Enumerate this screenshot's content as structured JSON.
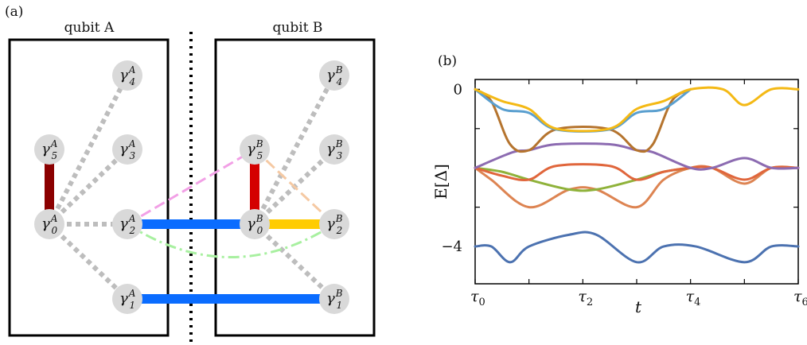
{
  "panel_a": {
    "label": "(a)",
    "box_a_title": "qubit A",
    "box_b_title": "qubit B",
    "nodes": [
      {
        "id": "A0",
        "sym": "γ",
        "sub": "0",
        "sup": "A"
      },
      {
        "id": "A1",
        "sym": "γ",
        "sub": "1",
        "sup": "A"
      },
      {
        "id": "A2",
        "sym": "γ",
        "sub": "2",
        "sup": "A"
      },
      {
        "id": "A3",
        "sym": "γ",
        "sub": "3",
        "sup": "A"
      },
      {
        "id": "A4",
        "sym": "γ",
        "sub": "4",
        "sup": "A"
      },
      {
        "id": "A5",
        "sym": "γ",
        "sub": "5",
        "sup": "A"
      },
      {
        "id": "B0",
        "sym": "γ",
        "sub": "0",
        "sup": "B"
      },
      {
        "id": "B1",
        "sym": "γ",
        "sub": "1",
        "sup": "B"
      },
      {
        "id": "B2",
        "sym": "γ",
        "sub": "2",
        "sup": "B"
      },
      {
        "id": "B3",
        "sym": "γ",
        "sub": "3",
        "sup": "B"
      },
      {
        "id": "B4",
        "sym": "γ",
        "sub": "4",
        "sup": "B"
      },
      {
        "id": "B5",
        "sym": "γ",
        "sub": "5",
        "sup": "B"
      }
    ],
    "colors": {
      "node_fill": "#d9d9d9",
      "grey_dotted": "#bdbdbd",
      "dark_red": "#8b0000",
      "red": "#d40000",
      "blue": "#0a6cff",
      "yellow": "#ffcc00",
      "pink": "#f2a0e6",
      "peach": "#f5c9a3",
      "light_green": "#a8f0a0"
    }
  },
  "panel_b": {
    "label": "(b)",
    "chart_data": {
      "type": "line",
      "ylabel": "E[Δ]",
      "xlabel": "t",
      "yticks": [
        "0",
        "−4"
      ],
      "ytick_values": [
        0,
        -4
      ],
      "xticks": [
        {
          "sym": "τ",
          "sub": "0",
          "value": 0
        },
        {
          "sym": "τ",
          "sub": "2",
          "value": 2
        },
        {
          "sym": "τ",
          "sub": "4",
          "value": 4
        },
        {
          "sym": "τ",
          "sub": "6",
          "value": 6
        }
      ],
      "xlim": [
        0,
        6
      ],
      "ylim": [
        -4.95,
        0.25
      ],
      "series": [
        {
          "color": "#4c72b0",
          "points": [
            [
              0,
              -4
            ],
            [
              0.3,
              -4
            ],
            [
              0.65,
              -4.4
            ],
            [
              1,
              -4
            ],
            [
              1.75,
              -3.7
            ],
            [
              2.25,
              -3.7
            ],
            [
              3,
              -4.4
            ],
            [
              3.5,
              -4
            ],
            [
              4.1,
              -4
            ],
            [
              5,
              -4.4
            ],
            [
              5.5,
              -4
            ],
            [
              6,
              -4
            ]
          ]
        },
        {
          "color": "#dd8452",
          "points": [
            [
              0,
              -2
            ],
            [
              0.3,
              -2.3
            ],
            [
              1,
              -3
            ],
            [
              1.75,
              -2.55
            ],
            [
              2.25,
              -2.55
            ],
            [
              3,
              -3
            ],
            [
              3.5,
              -2.3
            ],
            [
              4,
              -2
            ],
            [
              4.4,
              -2
            ],
            [
              5,
              -2.4
            ],
            [
              5.5,
              -2
            ],
            [
              6,
              -2
            ]
          ]
        },
        {
          "color": "#8fb23a",
          "points": [
            [
              0,
              -2
            ],
            [
              0.5,
              -2.1
            ],
            [
              1,
              -2.3
            ],
            [
              1.75,
              -2.55
            ],
            [
              2.25,
              -2.55
            ],
            [
              3,
              -2.3
            ],
            [
              3.5,
              -2.1
            ],
            [
              4,
              -2
            ]
          ]
        },
        {
          "color": "#e0663c",
          "points": [
            [
              0,
              -2
            ],
            [
              0.5,
              -2.2
            ],
            [
              1,
              -2.3
            ],
            [
              1.5,
              -1.95
            ],
            [
              2.5,
              -1.95
            ],
            [
              3,
              -2.3
            ],
            [
              3.5,
              -2.1
            ],
            [
              4,
              -2
            ],
            [
              4.4,
              -2
            ],
            [
              5,
              -2.3
            ],
            [
              5.5,
              -2
            ],
            [
              6,
              -2
            ]
          ]
        },
        {
          "color": "#8c6bb1",
          "points": [
            [
              0,
              -2
            ],
            [
              0.7,
              -1.6
            ],
            [
              1,
              -1.55
            ],
            [
              1.5,
              -1.4
            ],
            [
              2.5,
              -1.4
            ],
            [
              3,
              -1.55
            ],
            [
              3.3,
              -1.6
            ],
            [
              4,
              -2
            ],
            [
              4.4,
              -2
            ],
            [
              5,
              -1.75
            ],
            [
              5.5,
              -2
            ],
            [
              6,
              -2
            ]
          ]
        },
        {
          "color": "#b5742e",
          "points": [
            [
              0,
              0
            ],
            [
              0.3,
              -0.3
            ],
            [
              0.65,
              -1.4
            ],
            [
              1,
              -1.55
            ],
            [
              1.5,
              -1.02
            ],
            [
              2.5,
              -1.02
            ],
            [
              3,
              -1.55
            ],
            [
              3.3,
              -1.4
            ],
            [
              3.65,
              -0.3
            ],
            [
              4,
              0
            ]
          ]
        },
        {
          "color": "#5a9fcf",
          "points": [
            [
              0,
              0
            ],
            [
              0.5,
              -0.5
            ],
            [
              1,
              -0.6
            ],
            [
              1.5,
              -1.02
            ],
            [
              2.5,
              -1.02
            ],
            [
              3,
              -0.6
            ],
            [
              3.5,
              -0.5
            ],
            [
              4,
              0
            ]
          ]
        },
        {
          "color": "#f4b915",
          "points": [
            [
              0,
              0
            ],
            [
              0.5,
              -0.3
            ],
            [
              1,
              -0.5
            ],
            [
              1.5,
              -1.0
            ],
            [
              2.5,
              -1.0
            ],
            [
              3,
              -0.5
            ],
            [
              3.5,
              -0.3
            ],
            [
              4,
              0
            ],
            [
              4.6,
              0
            ],
            [
              5,
              -0.4
            ],
            [
              5.5,
              0
            ],
            [
              6,
              0
            ]
          ]
        }
      ]
    }
  }
}
